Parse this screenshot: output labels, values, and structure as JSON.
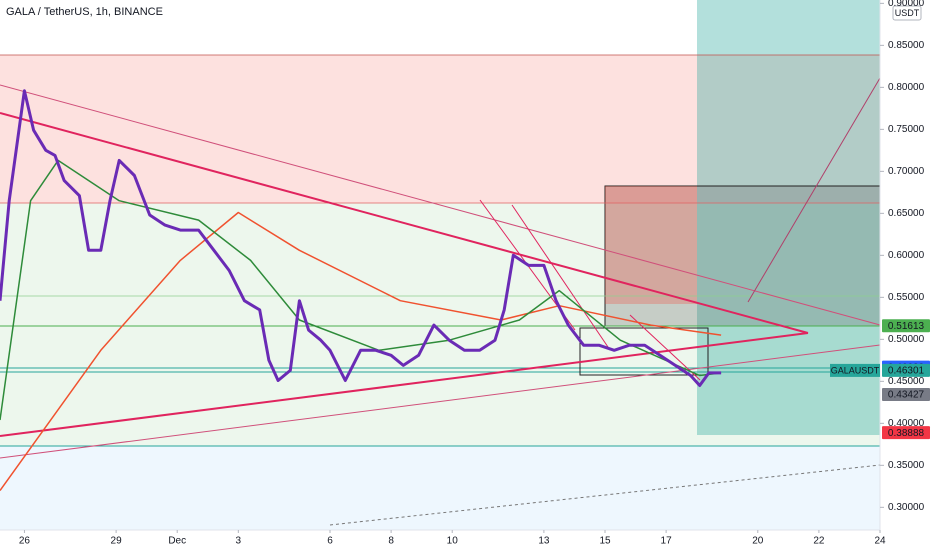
{
  "chart_data": {
    "type": "line",
    "title": "GALA / TetherUS, 1h, BINANCE",
    "currency": "USDT",
    "symbol_tag": "GALAUSDT",
    "xlim": [
      -0.8,
      28
    ],
    "ylim": [
      0.273,
      0.904
    ],
    "xticks": [
      {
        "value": 0,
        "label": "26"
      },
      {
        "value": 3,
        "label": "29"
      },
      {
        "value": 5,
        "label": "Dec"
      },
      {
        "value": 7,
        "label": "3"
      },
      {
        "value": 10,
        "label": "6"
      },
      {
        "value": 12,
        "label": "8"
      },
      {
        "value": 14,
        "label": "10"
      },
      {
        "value": 17,
        "label": "13"
      },
      {
        "value": 19,
        "label": "15"
      },
      {
        "value": 21,
        "label": "17"
      },
      {
        "value": 24,
        "label": "20"
      },
      {
        "value": 26,
        "label": "22"
      },
      {
        "value": 28,
        "label": "24"
      }
    ],
    "yticks": [
      {
        "value": 0.9,
        "label": "0.90000"
      },
      {
        "value": 0.85,
        "label": "0.85000"
      },
      {
        "value": 0.8,
        "label": "0.80000"
      },
      {
        "value": 0.75,
        "label": "0.75000"
      },
      {
        "value": 0.7,
        "label": "0.70000"
      },
      {
        "value": 0.65,
        "label": "0.65000"
      },
      {
        "value": 0.6,
        "label": "0.60000"
      },
      {
        "value": 0.55,
        "label": "0.55000"
      },
      {
        "value": 0.5,
        "label": "0.50000"
      },
      {
        "value": 0.45,
        "label": "0.45000"
      },
      {
        "value": 0.4,
        "label": "0.40000"
      },
      {
        "value": 0.35,
        "label": "0.35000"
      },
      {
        "value": 0.3,
        "label": "0.30000"
      }
    ],
    "series": [
      {
        "color": "#f0522f",
        "width": 1.5,
        "x": [
          -0.8,
          2.5,
          5.1,
          7.0,
          9.0,
          12.3,
          15.6,
          17.5,
          20.5,
          22.8
        ],
        "values": [
          0.32,
          0.487,
          0.594,
          0.651,
          0.606,
          0.546,
          0.523,
          0.54,
          0.517,
          0.505
        ]
      },
      {
        "color": "#2e8b3a",
        "width": 1.5,
        "x": [
          -0.8,
          0.2,
          1.1,
          3.1,
          5.7,
          7.4,
          9.0,
          11.6,
          13.9,
          16.2,
          17.5,
          19.5,
          22.1,
          22.8
        ],
        "values": [
          0.404,
          0.665,
          0.713,
          0.665,
          0.642,
          0.594,
          0.523,
          0.487,
          0.499,
          0.523,
          0.558,
          0.499,
          0.457,
          0.46
        ]
      },
      {
        "color": "#6a2bb5",
        "width": 3,
        "x": [
          -0.8,
          -0.5,
          0,
          0.3,
          0.7,
          1.0,
          1.3,
          1.8,
          2.1,
          2.5,
          2.8,
          3.1,
          3.6,
          4.1,
          4.6,
          5.1,
          5.7,
          6.2,
          6.7,
          7.2,
          7.7,
          8.0,
          8.3,
          8.7,
          9.0,
          9.3,
          9.7,
          10.0,
          10.5,
          11.0,
          11.5,
          12.0,
          12.4,
          12.9,
          13.4,
          13.9,
          14.4,
          14.9,
          15.4,
          15.7,
          16.0,
          16.5,
          17.0,
          17.4,
          17.8,
          18.3,
          18.8,
          19.3,
          19.8,
          20.3,
          20.8,
          21.3,
          21.8,
          22.1,
          22.4,
          22.8
        ],
        "values": [
          0.546,
          0.665,
          0.796,
          0.749,
          0.725,
          0.719,
          0.689,
          0.671,
          0.606,
          0.606,
          0.665,
          0.713,
          0.695,
          0.648,
          0.636,
          0.63,
          0.63,
          0.606,
          0.582,
          0.546,
          0.535,
          0.475,
          0.451,
          0.463,
          0.546,
          0.511,
          0.499,
          0.487,
          0.451,
          0.487,
          0.487,
          0.481,
          0.469,
          0.481,
          0.517,
          0.499,
          0.487,
          0.487,
          0.499,
          0.535,
          0.6,
          0.588,
          0.588,
          0.546,
          0.517,
          0.493,
          0.493,
          0.487,
          0.493,
          0.493,
          0.481,
          0.469,
          0.457,
          0.445,
          0.46,
          0.46
        ]
      }
    ],
    "price_tags": [
      {
        "value": 0.51613,
        "color": "#4caf50"
      },
      {
        "value": 0.46688,
        "color": "#2962ff"
      },
      {
        "value": 0.46301,
        "color": "#26a69a"
      },
      {
        "value": 0.43427,
        "color": "#787b86"
      },
      {
        "value": 0.38888,
        "color": "#f23645"
      }
    ]
  }
}
